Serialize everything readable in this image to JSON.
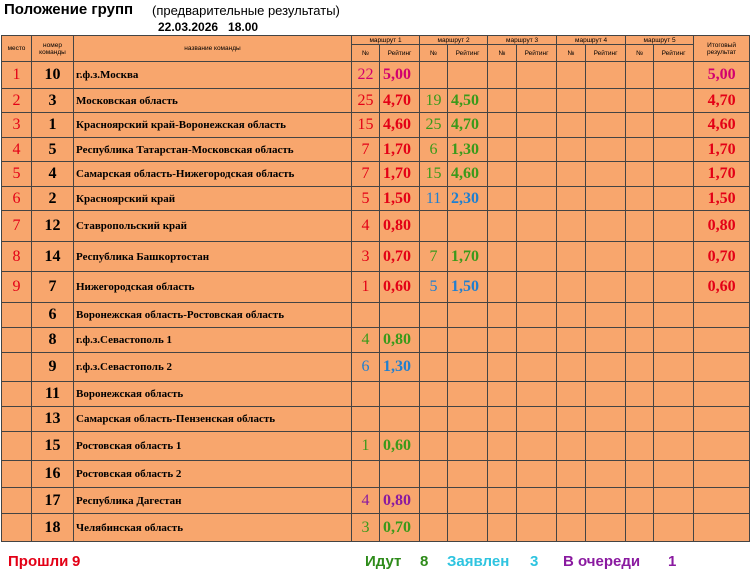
{
  "title": "Положение групп",
  "subtitle": "(предварительные результаты)",
  "datetime": "22.03.2026   18.00",
  "columns": {
    "place": "место",
    "team": "номер команды",
    "name": "название команды",
    "routes": [
      "маршрут 1",
      "маршрут 2",
      "маршрут 3",
      "маршрут 4",
      "маршрут 5"
    ],
    "num": "№",
    "rating": "Рейтинг",
    "final": "Итоговый результат"
  },
  "rows": [
    {
      "place": 1,
      "team": 10,
      "name": "г.ф.з.Москва",
      "routes": [
        {
          "num": 22,
          "rating": "5,00",
          "color": "#d2006e"
        },
        null,
        null,
        null,
        null
      ],
      "final": "5,00",
      "final_color": "#d2006e"
    },
    {
      "place": 2,
      "team": 3,
      "name": "Московская область",
      "routes": [
        {
          "num": 25,
          "rating": "4,70",
          "color": "#e30016"
        },
        {
          "num": 19,
          "rating": "4,50",
          "color": "#3a9a1a"
        },
        null,
        null,
        null
      ],
      "final": "4,70",
      "final_color": "#e30016"
    },
    {
      "place": 3,
      "team": 1,
      "name": "Красноярский край-Воронежская область",
      "routes": [
        {
          "num": 15,
          "rating": "4,60",
          "color": "#e30016"
        },
        {
          "num": 25,
          "rating": "4,70",
          "color": "#3a9a1a"
        },
        null,
        null,
        null
      ],
      "final": "4,60",
      "final_color": "#e30016"
    },
    {
      "place": 4,
      "team": 5,
      "name": "Республика Татарстан-Московская область",
      "routes": [
        {
          "num": 7,
          "rating": "1,70",
          "color": "#e30016"
        },
        {
          "num": 6,
          "rating": "1,30",
          "color": "#3a9a1a"
        },
        null,
        null,
        null
      ],
      "final": "1,70",
      "final_color": "#e30016"
    },
    {
      "place": 5,
      "team": 4,
      "name": "Самарская область-Нижегородская область",
      "routes": [
        {
          "num": 7,
          "rating": "1,70",
          "color": "#e30016"
        },
        {
          "num": 15,
          "rating": "4,60",
          "color": "#3a9a1a"
        },
        null,
        null,
        null
      ],
      "final": "1,70",
      "final_color": "#e30016"
    },
    {
      "place": 6,
      "team": 2,
      "name": "Красноярский край",
      "routes": [
        {
          "num": 5,
          "rating": "1,50",
          "color": "#e30016"
        },
        {
          "num": 11,
          "rating": "2,30",
          "color": "#1f7fd0"
        },
        null,
        null,
        null
      ],
      "final": "1,50",
      "final_color": "#e30016"
    },
    {
      "place": 7,
      "team": 12,
      "name": "Ставропольский край",
      "routes": [
        {
          "num": 4,
          "rating": "0,80",
          "color": "#e30016"
        },
        null,
        null,
        null,
        null
      ],
      "final": "0,80",
      "final_color": "#e30016"
    },
    {
      "place": 8,
      "team": 14,
      "name": "Республика Башкортостан",
      "routes": [
        {
          "num": 3,
          "rating": "0,70",
          "color": "#e30016"
        },
        {
          "num": 7,
          "rating": "1,70",
          "color": "#3a9a1a"
        },
        null,
        null,
        null
      ],
      "final": "0,70",
      "final_color": "#e30016"
    },
    {
      "place": 9,
      "team": 7,
      "name": "Нижегородская область",
      "routes": [
        {
          "num": 1,
          "rating": "0,60",
          "color": "#e30016"
        },
        {
          "num": 5,
          "rating": "1,50",
          "color": "#1f7fd0"
        },
        null,
        null,
        null
      ],
      "final": "0,60",
      "final_color": "#e30016"
    },
    {
      "place": null,
      "team": 6,
      "name": "Воронежская область-Ростовская область",
      "routes": [
        null,
        null,
        null,
        null,
        null
      ],
      "final": null
    },
    {
      "place": null,
      "team": 8,
      "name": "г.ф.з.Севастополь 1",
      "routes": [
        {
          "num": 4,
          "rating": "0,80",
          "color": "#3a9a1a"
        },
        null,
        null,
        null,
        null
      ],
      "final": null
    },
    {
      "place": null,
      "team": 9,
      "name": "г.ф.з.Севастополь 2",
      "routes": [
        {
          "num": 6,
          "rating": "1,30",
          "color": "#1f7fd0"
        },
        null,
        null,
        null,
        null
      ],
      "final": null
    },
    {
      "place": null,
      "team": 11,
      "name": "Воронежская область",
      "routes": [
        null,
        null,
        null,
        null,
        null
      ],
      "final": null
    },
    {
      "place": null,
      "team": 13,
      "name": "Самарская область-Пензенская область",
      "routes": [
        null,
        null,
        null,
        null,
        null
      ],
      "final": null
    },
    {
      "place": null,
      "team": 15,
      "name": "Ростовская область 1",
      "routes": [
        {
          "num": 1,
          "rating": "0,60",
          "color": "#3a9a1a"
        },
        null,
        null,
        null,
        null
      ],
      "final": null
    },
    {
      "place": null,
      "team": 16,
      "name": "Ростовская область 2",
      "routes": [
        null,
        null,
        null,
        null,
        null
      ],
      "final": null
    },
    {
      "place": null,
      "team": 17,
      "name": "Республика Дагестан",
      "routes": [
        {
          "num": 4,
          "rating": "0,80",
          "color": "#8a1aa0"
        },
        null,
        null,
        null,
        null
      ],
      "final": null
    },
    {
      "place": null,
      "team": 18,
      "name": "Челябинская область",
      "routes": [
        {
          "num": 3,
          "rating": "0,70",
          "color": "#3a9a1a"
        },
        null,
        null,
        null,
        null
      ],
      "final": null
    }
  ],
  "footer": [
    {
      "label": "Прошли",
      "count": 9,
      "color": "#e30016"
    },
    {
      "label": "Идут",
      "count": 8,
      "color": "#2e8b1a"
    },
    {
      "label": "Заявлен",
      "count": 3,
      "color": "#2ec4e0"
    },
    {
      "label": "В очереди",
      "count": 1,
      "color": "#8a1aa0"
    }
  ]
}
